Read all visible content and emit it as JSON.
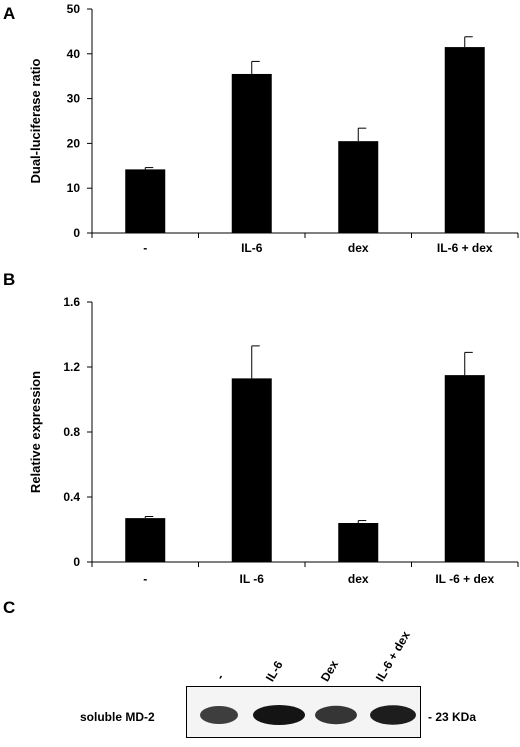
{
  "panels": {
    "a": "A",
    "b": "B",
    "c": "C"
  },
  "chart_data": [
    {
      "type": "bar",
      "title": "",
      "xlabel": "",
      "ylabel": "Dual-luciferase ratio",
      "categories": [
        "-",
        "IL-6",
        "dex",
        "IL-6 + dex"
      ],
      "series": [
        {
          "values": [
            14.2,
            35.5,
            20.5,
            41.5
          ],
          "errors": [
            0.4,
            2.8,
            2.9,
            2.3
          ]
        }
      ],
      "ylim": [
        0,
        50
      ],
      "yticks": [
        0,
        10,
        20,
        30,
        40,
        50
      ],
      "ytick_labels": [
        "0",
        "10",
        "20",
        "30",
        "40",
        "50"
      ],
      "grid": false,
      "legend": "none"
    },
    {
      "type": "bar",
      "title": "",
      "xlabel": "",
      "ylabel": "Relative expression",
      "categories": [
        "-",
        "IL -6",
        "dex",
        "IL -6 + dex"
      ],
      "series": [
        {
          "values": [
            0.27,
            1.13,
            0.24,
            1.15
          ],
          "errors": [
            0.01,
            0.2,
            0.015,
            0.14
          ]
        }
      ],
      "ylim": [
        0,
        1.6
      ],
      "yticks": [
        0,
        0.4,
        0.8,
        1.2,
        1.6
      ],
      "ytick_labels": [
        "0",
        "0.4",
        "0.8",
        "1.2",
        "1.6"
      ],
      "grid": false,
      "legend": "none"
    }
  ],
  "blot": {
    "row_label": "soluble MD-2",
    "lanes": [
      "-",
      "IL-6",
      "Dex",
      "IL-6 + dex"
    ],
    "marker": "- 23 KDa",
    "band_intensity": [
      0.75,
      1.0,
      0.8,
      0.95
    ]
  }
}
